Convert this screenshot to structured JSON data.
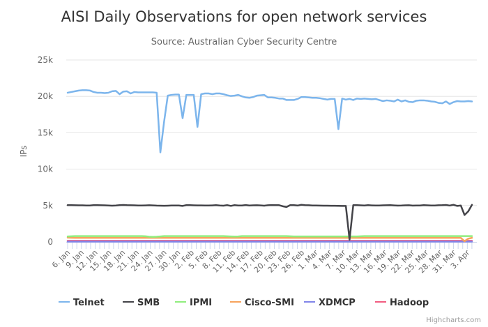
{
  "chart_data": {
    "type": "line",
    "title": "AISI Daily Observations for open network services",
    "subtitle": "Source: Australian Cyber Security Centre",
    "ylabel": "IPs",
    "xlabel": "",
    "ylim": [
      0,
      25000
    ],
    "yticks": [
      0,
      5000,
      10000,
      15000,
      20000,
      25000
    ],
    "ytick_labels": [
      "0",
      "5k",
      "10k",
      "15k",
      "20k",
      "25k"
    ],
    "x_start_day": "6 Jan",
    "x_tick_labels": [
      "6. Jan",
      "9. Jan",
      "12. Jan",
      "15. Jan",
      "18. Jan",
      "21. Jan",
      "24. Jan",
      "27. Jan",
      "30. Jan",
      "2. Feb",
      "5. Feb",
      "8. Feb",
      "11. Feb",
      "14. Feb",
      "17. Feb",
      "20. Feb",
      "23. Feb",
      "26. Feb",
      "1. Mar",
      "4. Mar",
      "7. Mar",
      "10. Mar",
      "13. Mar",
      "16. Mar",
      "19. Mar",
      "22. Mar",
      "25. Mar",
      "28. Mar",
      "31. Mar",
      "3. Apr"
    ],
    "x_tick_label_interval_days": 3,
    "grid": true,
    "legend_position": "bottom",
    "series": [
      {
        "name": "Telnet",
        "color": "#7cb5ec",
        "values": [
          20500,
          20600,
          20700,
          20800,
          20850,
          20850,
          20800,
          20600,
          20500,
          20500,
          20450,
          20500,
          20700,
          20750,
          20300,
          20650,
          20700,
          20400,
          20600,
          20550,
          20550,
          20550,
          20550,
          20550,
          20500,
          12300,
          16500,
          20100,
          20200,
          20250,
          20250,
          17000,
          20200,
          20200,
          20200,
          15800,
          20300,
          20400,
          20400,
          20300,
          20400,
          20400,
          20300,
          20150,
          20050,
          20100,
          20200,
          20000,
          19850,
          19800,
          19900,
          20100,
          20150,
          20200,
          19850,
          19850,
          19800,
          19700,
          19700,
          19500,
          19500,
          19500,
          19650,
          19900,
          19900,
          19850,
          19800,
          19800,
          19750,
          19650,
          19550,
          19650,
          19650,
          15500,
          19700,
          19550,
          19650,
          19500,
          19700,
          19650,
          19700,
          19650,
          19600,
          19650,
          19500,
          19350,
          19450,
          19400,
          19300,
          19550,
          19300,
          19450,
          19250,
          19200,
          19400,
          19450,
          19450,
          19400,
          19300,
          19250,
          19100,
          19050,
          19300,
          18950,
          19200,
          19350,
          19300,
          19300,
          19350,
          19300
        ]
      },
      {
        "name": "SMB",
        "color": "#434348",
        "values": [
          5050,
          5050,
          5040,
          5030,
          5030,
          5000,
          5000,
          5050,
          5050,
          5040,
          5030,
          5000,
          4980,
          5000,
          5050,
          5080,
          5050,
          5040,
          5030,
          5010,
          5000,
          5020,
          5040,
          5020,
          4990,
          4980,
          4970,
          4980,
          5000,
          5010,
          5000,
          4950,
          5050,
          5050,
          5030,
          5020,
          5020,
          5010,
          5000,
          5020,
          5050,
          5000,
          4980,
          5050,
          4950,
          5050,
          5010,
          5000,
          5060,
          5010,
          5030,
          5040,
          5020,
          4980,
          5040,
          5060,
          5050,
          5050,
          4900,
          4800,
          5050,
          5050,
          5000,
          5100,
          5050,
          5040,
          5010,
          5000,
          4990,
          4980,
          4980,
          4970,
          4970,
          4960,
          4950,
          4950,
          300,
          5050,
          5050,
          5030,
          5010,
          5050,
          5020,
          5000,
          5010,
          5030,
          5040,
          5050,
          5020,
          4990,
          5000,
          5030,
          5040,
          4990,
          5010,
          5000,
          5050,
          5030,
          5010,
          5000,
          5040,
          5050,
          5080,
          5000,
          5100,
          4950,
          5000,
          3700,
          4200,
          5100
        ]
      },
      {
        "name": "IPMI",
        "color": "#90ed7d",
        "values": [
          750,
          780,
          800,
          800,
          800,
          800,
          800,
          800,
          800,
          800,
          800,
          800,
          800,
          800,
          800,
          800,
          800,
          800,
          800,
          800,
          800,
          780,
          720,
          700,
          720,
          760,
          800,
          800,
          800,
          800,
          800,
          800,
          800,
          800,
          800,
          800,
          800,
          800,
          800,
          800,
          800,
          800,
          800,
          780,
          760,
          740,
          760,
          800,
          800,
          800,
          800,
          800,
          800,
          800,
          800,
          800,
          800,
          800,
          800,
          800,
          780,
          760,
          750,
          750,
          750,
          750,
          750,
          750,
          750,
          750,
          750,
          750,
          750,
          750,
          750,
          750,
          750,
          750,
          750,
          780,
          800,
          800,
          800,
          800,
          800,
          800,
          800,
          800,
          800,
          800,
          800,
          800,
          800,
          800,
          800,
          800,
          800,
          800,
          800,
          800,
          800,
          800,
          800,
          800,
          800,
          800,
          800,
          800,
          800,
          800
        ]
      },
      {
        "name": "Cisco-SMI",
        "color": "#f7a35c",
        "values": [
          600,
          580,
          560,
          560,
          560,
          560,
          560,
          560,
          560,
          560,
          560,
          560,
          560,
          560,
          560,
          560,
          560,
          560,
          560,
          560,
          560,
          560,
          560,
          560,
          560,
          560,
          560,
          560,
          560,
          560,
          560,
          560,
          560,
          560,
          560,
          560,
          560,
          560,
          560,
          560,
          560,
          560,
          560,
          560,
          560,
          560,
          560,
          560,
          560,
          560,
          560,
          560,
          560,
          560,
          560,
          560,
          560,
          560,
          560,
          560,
          560,
          560,
          560,
          560,
          560,
          560,
          560,
          560,
          560,
          560,
          560,
          560,
          560,
          560,
          560,
          560,
          560,
          560,
          560,
          560,
          560,
          560,
          560,
          560,
          560,
          560,
          560,
          560,
          560,
          560,
          560,
          560,
          560,
          560,
          560,
          560,
          560,
          560,
          560,
          560,
          560,
          560,
          560,
          560,
          560,
          560,
          560,
          100,
          450,
          560
        ]
      },
      {
        "name": "XDMCP",
        "color": "#8085e9",
        "values": [
          50,
          50,
          50,
          50,
          50,
          50,
          50,
          50,
          50,
          50,
          50,
          50,
          50,
          50,
          50,
          50,
          50,
          50,
          50,
          50,
          50,
          50,
          50,
          50,
          50,
          50,
          50,
          50,
          50,
          50,
          50,
          50,
          50,
          50,
          50,
          50,
          50,
          50,
          50,
          50,
          50,
          50,
          50,
          50,
          50,
          50,
          50,
          50,
          50,
          50,
          50,
          50,
          50,
          50,
          50,
          50,
          50,
          50,
          50,
          50,
          50,
          50,
          50,
          50,
          50,
          50,
          50,
          50,
          50,
          50,
          50,
          50,
          50,
          50,
          50,
          50,
          50,
          50,
          50,
          50,
          50,
          50,
          50,
          50,
          50,
          50,
          50,
          50,
          50,
          50,
          50,
          50,
          50,
          50,
          50,
          50,
          50,
          50,
          50,
          50,
          50,
          50,
          50,
          50,
          50,
          50,
          50,
          50,
          50,
          50
        ]
      },
      {
        "name": "Hadoop",
        "color": "#f15c80",
        "values": [
          150,
          150,
          150,
          150,
          150,
          150,
          150,
          150,
          150,
          150,
          150,
          150,
          150,
          150,
          150,
          150,
          150,
          150,
          150,
          150,
          150,
          150,
          150,
          150,
          150,
          150,
          150,
          150,
          150,
          150,
          150,
          150,
          150,
          150,
          150,
          150,
          150,
          150,
          150,
          150,
          150,
          150,
          150,
          150,
          150,
          150,
          150,
          150,
          150,
          150,
          150,
          150,
          150,
          150,
          150,
          150,
          150,
          150,
          150,
          150,
          150,
          150,
          150,
          150,
          150,
          150,
          150,
          150,
          150,
          150,
          150,
          150,
          150,
          150,
          150,
          150,
          150,
          150,
          150,
          150,
          150,
          150,
          150,
          150,
          150,
          150,
          150,
          150,
          150,
          150,
          150,
          150,
          150,
          150,
          150,
          150,
          150,
          150,
          150,
          150,
          150,
          150,
          150,
          150,
          150,
          150,
          150,
          150,
          150,
          150
        ]
      }
    ]
  },
  "credits": "Highcharts.com"
}
